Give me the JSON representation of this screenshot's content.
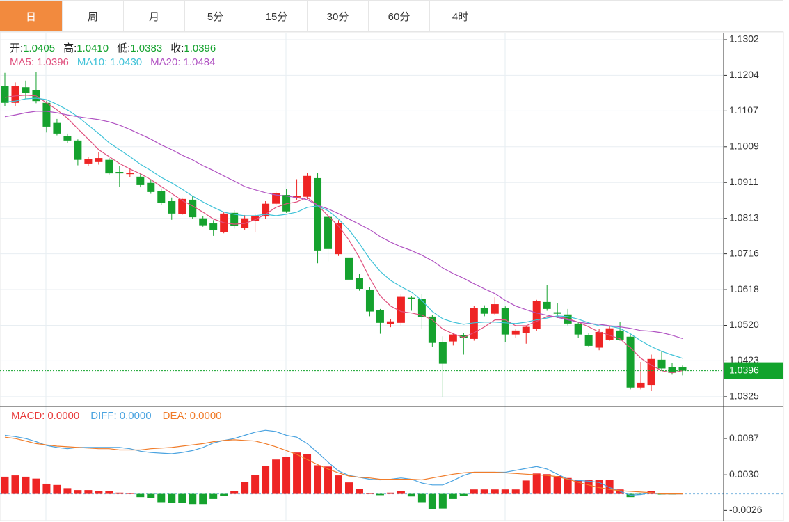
{
  "tabs": [
    "日",
    "周",
    "月",
    "5分",
    "15分",
    "30分",
    "60分",
    "4时"
  ],
  "chart_data": [
    {
      "type": "candlestick",
      "up_color": "#ee2424",
      "down_color": "#15a22e",
      "readout": [
        {
          "name": "开:",
          "value": 1.0405
        },
        {
          "name": "高:",
          "value": 1.041,
          "label": "1.0410"
        },
        {
          "name": "低:",
          "value": 1.0383
        },
        {
          "name": "收:",
          "value": 1.0396
        }
      ],
      "ma_readout": [
        {
          "name": "MA5:",
          "value": 1.0396,
          "color": "#e0507e"
        },
        {
          "name": "MA10:",
          "value": 1.043,
          "label": "1.0430",
          "color": "#3fc2d8"
        },
        {
          "name": "MA20:",
          "value": 1.0484,
          "color": "#b052c2"
        }
      ],
      "open": [
        1.1176,
        1.1129,
        1.1172,
        1.1163,
        1.1129,
        1.1074,
        1.1039,
        1.1026,
        1.0963,
        1.0967,
        1.0973,
        1.094,
        1.0934,
        1.0927,
        1.091,
        1.0887,
        1.086,
        1.0825,
        1.0864,
        1.0813,
        1.0799,
        1.0776,
        1.0828,
        1.0786,
        1.0805,
        1.0818,
        1.0853,
        1.0877,
        1.087,
        1.0872,
        1.0923,
        1.0817,
        1.0715,
        1.0706,
        1.0649,
        1.0617,
        1.0561,
        1.0523,
        1.0527,
        1.0596,
        1.0592,
        1.0544,
        1.0474,
        1.0476,
        1.0493,
        1.0483,
        1.0567,
        1.0552,
        1.0567,
        1.0495,
        1.05,
        1.051,
        1.0584,
        1.0556,
        1.055,
        1.0525,
        1.0493,
        1.0459,
        1.0481,
        1.0506,
        1.0489,
        1.035,
        1.0357,
        1.0426,
        1.0405,
        1.0405
      ],
      "high": [
        1.1211,
        1.1185,
        1.119,
        1.1214,
        1.1135,
        1.1085,
        1.1045,
        1.1029,
        1.098,
        1.0995,
        1.0978,
        1.0956,
        1.095,
        1.0935,
        1.092,
        1.0895,
        1.087,
        1.087,
        1.0874,
        1.082,
        1.0808,
        1.083,
        1.0835,
        1.0822,
        1.0826,
        1.086,
        1.0886,
        1.0893,
        1.092,
        1.0938,
        1.0938,
        1.083,
        1.0808,
        1.0712,
        1.066,
        1.0625,
        1.0565,
        1.0537,
        1.0605,
        1.06,
        1.0605,
        1.0548,
        1.049,
        1.05,
        1.05,
        1.0573,
        1.0575,
        1.0597,
        1.0572,
        1.051,
        1.052,
        1.059,
        1.063,
        1.058,
        1.0565,
        1.053,
        1.0498,
        1.051,
        1.052,
        1.053,
        1.0495,
        1.042,
        1.044,
        1.045,
        1.0418,
        1.041
      ],
      "low": [
        1.1121,
        1.1121,
        1.114,
        1.1128,
        1.1048,
        1.104,
        1.102,
        1.0958,
        1.0956,
        1.096,
        1.0933,
        1.09,
        1.0925,
        1.0898,
        1.088,
        1.085,
        1.0809,
        1.0822,
        1.0812,
        1.079,
        1.0765,
        1.0772,
        1.0785,
        1.0782,
        1.0775,
        1.0812,
        1.0849,
        1.0828,
        1.0864,
        1.0866,
        1.069,
        1.0695,
        1.071,
        1.0625,
        1.0615,
        1.0545,
        1.0497,
        1.0515,
        1.052,
        1.056,
        1.051,
        1.0462,
        1.0325,
        1.0465,
        1.044,
        1.0478,
        1.0545,
        1.0548,
        1.0475,
        1.0485,
        1.047,
        1.0505,
        1.056,
        1.054,
        1.052,
        1.0485,
        1.046,
        1.0452,
        1.0478,
        1.0478,
        1.0345,
        1.0345,
        1.034,
        1.0397,
        1.0385,
        1.0383
      ],
      "close": [
        1.1129,
        1.1176,
        1.1157,
        1.1134,
        1.1064,
        1.1045,
        1.1026,
        1.0973,
        1.0975,
        1.0978,
        1.0936,
        1.0936,
        1.0937,
        1.0904,
        1.0885,
        1.0856,
        1.0826,
        1.0866,
        1.0816,
        1.0794,
        1.078,
        1.0826,
        1.0792,
        1.0813,
        1.082,
        1.0853,
        1.0881,
        1.0832,
        1.0874,
        1.0929,
        1.0725,
        1.0729,
        1.0801,
        1.0645,
        1.062,
        1.0558,
        1.0527,
        1.0531,
        1.0598,
        1.0592,
        1.0542,
        1.0472,
        1.0415,
        1.0495,
        1.0485,
        1.0567,
        1.0552,
        1.0578,
        1.0495,
        1.0506,
        1.0516,
        1.0586,
        1.0565,
        1.0552,
        1.0525,
        1.0495,
        1.0464,
        1.0502,
        1.0512,
        1.0481,
        1.035,
        1.0363,
        1.0428,
        1.0402,
        1.039,
        1.0396
      ],
      "ma": [
        {
          "color": "#e0507e",
          "values": [
            1.1144,
            1.1148,
            1.115,
            1.1148,
            1.1129,
            1.111,
            1.1087,
            1.1058,
            1.103,
            1.1001,
            1.0982,
            1.0963,
            1.0948,
            1.0935,
            1.0919,
            1.09,
            1.0881,
            1.0862,
            1.0847,
            1.083,
            1.0811,
            1.0801,
            1.0797,
            1.0799,
            1.0809,
            1.0824,
            1.0843,
            1.0853,
            1.0858,
            1.087,
            1.0849,
            1.082,
            1.0792,
            1.0754,
            1.0706,
            1.0649,
            1.0601,
            1.0573,
            1.0558,
            1.0554,
            1.0548,
            1.0535,
            1.051,
            1.0497,
            1.0487,
            1.05,
            1.0516,
            1.0535,
            1.0535,
            1.0519,
            1.0519,
            1.0531,
            1.0544,
            1.0544,
            1.0538,
            1.0529,
            1.0516,
            1.0502,
            1.0493,
            1.0483,
            1.0459,
            1.043,
            1.0411,
            1.0396,
            1.039,
            1.0396
          ]
        },
        {
          "color": "#3fc2d8",
          "values": [
            1.1131,
            1.1134,
            1.114,
            1.1142,
            1.1138,
            1.1125,
            1.111,
            1.1091,
            1.1068,
            1.1045,
            1.102,
            1.1001,
            1.0982,
            1.0961,
            1.0944,
            1.0925,
            1.091,
            1.0893,
            1.0874,
            1.0858,
            1.0843,
            1.083,
            1.0824,
            1.082,
            1.082,
            1.0824,
            1.082,
            1.0824,
            1.083,
            1.0843,
            1.0847,
            1.0834,
            1.0811,
            1.0782,
            1.0744,
            1.0702,
            1.0668,
            1.0643,
            1.0626,
            1.0611,
            1.0588,
            1.0558,
            1.0538,
            1.0529,
            1.0523,
            1.0527,
            1.0529,
            1.0529,
            1.0527,
            1.0525,
            1.0529,
            1.0535,
            1.054,
            1.0546,
            1.0544,
            1.0537,
            1.0527,
            1.0519,
            1.0518,
            1.0512,
            1.0497,
            1.0478,
            1.0462,
            1.0449,
            1.0439,
            1.043
          ]
        },
        {
          "color": "#b052c2",
          "values": [
            1.1091,
            1.1096,
            1.1102,
            1.1106,
            1.1106,
            1.1102,
            1.1096,
            1.1091,
            1.1087,
            1.1083,
            1.1077,
            1.1068,
            1.1056,
            1.1043,
            1.103,
            1.1014,
            1.1001,
            1.0986,
            1.0973,
            1.0957,
            1.0944,
            1.0929,
            1.0915,
            1.09,
            1.0891,
            1.0883,
            1.0877,
            1.0874,
            1.087,
            1.0864,
            1.0849,
            1.0839,
            1.0826,
            1.0811,
            1.0797,
            1.0782,
            1.0763,
            1.0748,
            1.0735,
            1.0725,
            1.0712,
            1.0697,
            1.0677,
            1.0662,
            1.0649,
            1.0634,
            1.062,
            1.0607,
            1.0588,
            1.0573,
            1.0563,
            1.0554,
            1.0548,
            1.0542,
            1.0535,
            1.0529,
            1.0525,
            1.0523,
            1.0519,
            1.0516,
            1.0512,
            1.0506,
            1.0504,
            1.05,
            1.0493,
            1.0484
          ]
        }
      ],
      "ylim": [
        1.03,
        1.1321
      ],
      "yticks": [
        1.1302,
        1.1204,
        1.1107,
        1.1009,
        1.0911,
        1.0813,
        1.0716,
        1.0618,
        {
          "value": 1.052,
          "label": "1.0520"
        },
        1.0423,
        1.0325
      ],
      "last_price_color": "#12a32c",
      "grid": true
    },
    {
      "type": "macd",
      "readout": [
        {
          "name": "MACD:",
          "value": 0,
          "label": "0.0000",
          "color": "#e83c3c"
        },
        {
          "name": "DIFF:",
          "value": 0,
          "label": "0.0000",
          "color": "#4aa3e0"
        },
        {
          "name": "DEA:",
          "value": 0,
          "label": "0.0000",
          "color": "#f07c2a"
        }
      ],
      "up_color": "#ee2424",
      "down_color": "#15a22e",
      "histogram": [
        0.0027,
        0.0029,
        0.0027,
        0.0024,
        0.0016,
        0.0014,
        0.0009,
        0.0006,
        0.0006,
        0.0005,
        0.0005,
        0.0002,
        0.0001,
        -0.0005,
        -0.0007,
        -0.0013,
        -0.0014,
        -0.0014,
        -0.0016,
        -0.0016,
        -0.0008,
        -0.0003,
        0.0004,
        0.0019,
        0.003,
        0.0044,
        0.0054,
        0.0058,
        0.0065,
        0.0062,
        0.0045,
        0.0043,
        0.0029,
        0.0018,
        0.0008,
        0.0001,
        -0.0002,
        0.0002,
        0.0004,
        -0.0004,
        -0.0013,
        -0.0024,
        -0.0023,
        -0.0008,
        -0.0003,
        0.0007,
        0.0007,
        0.0007,
        0.0007,
        0.0007,
        0.0021,
        0.0032,
        0.0031,
        0.0028,
        0.0025,
        0.0022,
        0.0022,
        0.0022,
        0.0022,
        0.0007,
        -0.0005,
        -0.0001,
        0.0004,
        -0.0001,
        -0.0001,
        0
      ],
      "diff": {
        "color": "#4aa3e0",
        "values": [
          0.0092,
          0.009,
          0.0087,
          0.0082,
          0.0076,
          0.0073,
          0.0071,
          0.0073,
          0.0073,
          0.0073,
          0.0073,
          0.0073,
          0.0071,
          0.0067,
          0.0065,
          0.0064,
          0.0063,
          0.0065,
          0.0068,
          0.0073,
          0.008,
          0.0084,
          0.0087,
          0.0092,
          0.0097,
          0.01,
          0.0098,
          0.0092,
          0.0089,
          0.0079,
          0.0065,
          0.005,
          0.0036,
          0.0029,
          0.0026,
          0.0023,
          0.0022,
          0.0023,
          0.0025,
          0.0023,
          0.0017,
          0.0014,
          0.0014,
          0.0021,
          0.0029,
          0.0034,
          0.0034,
          0.0034,
          0.0034,
          0.0037,
          0.004,
          0.0043,
          0.0039,
          0.0031,
          0.0023,
          0.0021,
          0.002,
          0.0018,
          0.001,
          0.0004,
          -0.0002,
          -0.0001,
          0.0002,
          0,
          0,
          0
        ]
      },
      "dea": {
        "color": "#f07c2a",
        "values": [
          0.0089,
          0.0087,
          0.0083,
          0.0079,
          0.0077,
          0.0075,
          0.0074,
          0.0073,
          0.0072,
          0.0071,
          0.0071,
          0.0069,
          0.0069,
          0.0069,
          0.0071,
          0.0072,
          0.0073,
          0.0075,
          0.0077,
          0.0079,
          0.0082,
          0.0084,
          0.0085,
          0.0084,
          0.0083,
          0.0079,
          0.0074,
          0.0068,
          0.0062,
          0.0054,
          0.0046,
          0.0039,
          0.0033,
          0.0028,
          0.0026,
          0.0025,
          0.0023,
          0.0023,
          0.0023,
          0.0023,
          0.0022,
          0.0025,
          0.0028,
          0.0031,
          0.0033,
          0.0034,
          0.0034,
          0.0034,
          0.0033,
          0.0032,
          0.0031,
          0.003,
          0.0029,
          0.0027,
          0.0023,
          0.0018,
          0.0014,
          0.001,
          0.0007,
          0.0005,
          0.0004,
          0.0003,
          0.0002,
          0,
          0,
          0
        ]
      },
      "ylim": [
        -0.0042,
        0.0133
      ],
      "yticks": [
        0.0087,
        {
          "value": 0.003,
          "label": "0.0030"
        },
        -0.0026
      ]
    }
  ]
}
